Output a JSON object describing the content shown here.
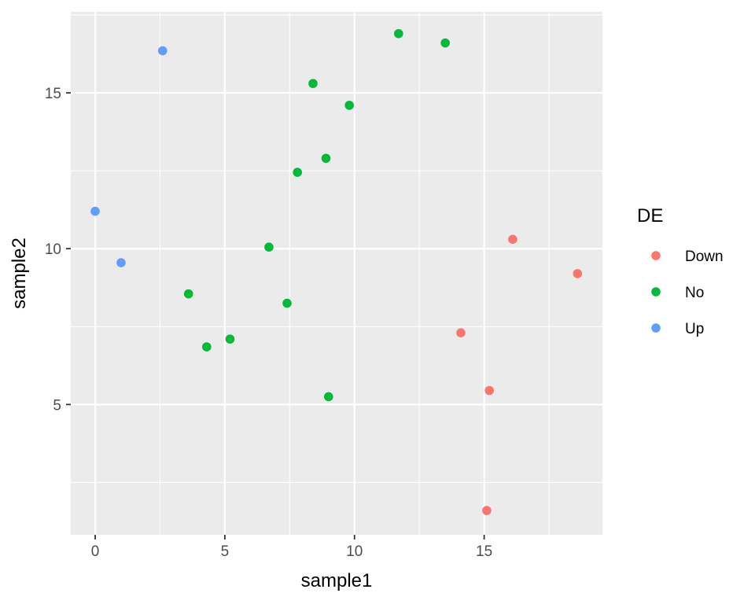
{
  "chart_data": {
    "type": "scatter",
    "xlabel": "sample1",
    "ylabel": "sample2",
    "xlim": [
      -0.94,
      19.56
    ],
    "ylim": [
      0.82,
      17.6
    ],
    "x_ticks": [
      0,
      5,
      10,
      15
    ],
    "y_ticks": [
      5,
      10,
      15
    ],
    "x_tick_labels": [
      "0",
      "5",
      "10",
      "15"
    ],
    "y_tick_labels": [
      "5",
      "10",
      "15"
    ],
    "grid": true,
    "legend": {
      "title": "DE",
      "placement": "right",
      "entries": [
        {
          "label": "Down",
          "color": "#F8766D"
        },
        {
          "label": "No",
          "color": "#00BA38"
        },
        {
          "label": "Up",
          "color": "#619CFF"
        }
      ]
    },
    "series": [
      {
        "name": "Down",
        "color": "#F8766D",
        "points": [
          {
            "x": 16.1,
            "y": 10.3
          },
          {
            "x": 18.6,
            "y": 9.2
          },
          {
            "x": 14.1,
            "y": 7.3
          },
          {
            "x": 15.2,
            "y": 5.45
          },
          {
            "x": 15.1,
            "y": 1.6
          }
        ]
      },
      {
        "name": "No",
        "color": "#00BA38",
        "points": [
          {
            "x": 11.7,
            "y": 16.9
          },
          {
            "x": 13.5,
            "y": 16.6
          },
          {
            "x": 8.4,
            "y": 15.3
          },
          {
            "x": 9.8,
            "y": 14.6
          },
          {
            "x": 8.9,
            "y": 12.9
          },
          {
            "x": 7.8,
            "y": 12.45
          },
          {
            "x": 6.7,
            "y": 10.05
          },
          {
            "x": 3.6,
            "y": 8.55
          },
          {
            "x": 7.4,
            "y": 8.25
          },
          {
            "x": 5.2,
            "y": 7.1
          },
          {
            "x": 4.3,
            "y": 6.85
          },
          {
            "x": 9.0,
            "y": 5.25
          }
        ]
      },
      {
        "name": "Up",
        "color": "#619CFF",
        "points": [
          {
            "x": 2.6,
            "y": 16.35
          },
          {
            "x": 0.0,
            "y": 11.2
          },
          {
            "x": 1.0,
            "y": 9.55
          }
        ]
      }
    ]
  }
}
